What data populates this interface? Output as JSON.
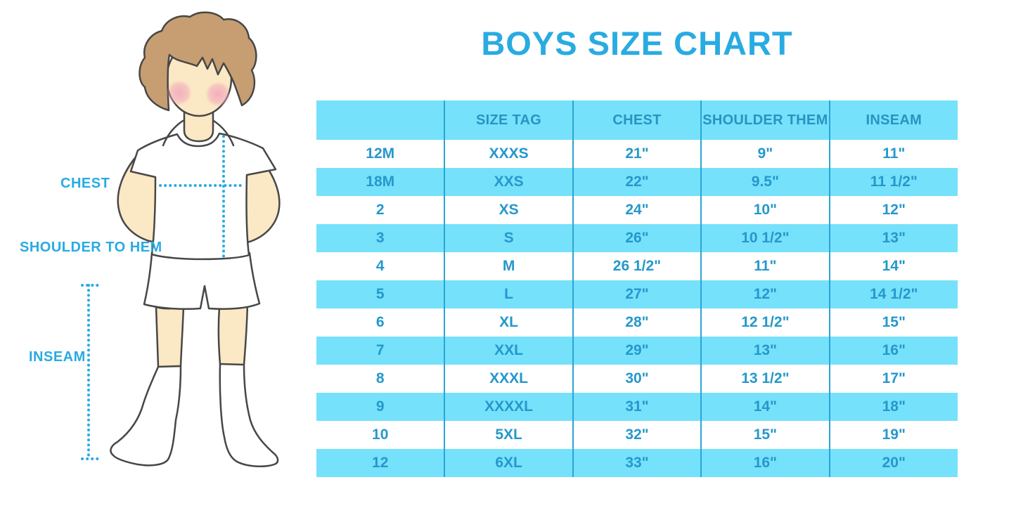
{
  "title": "BOYS SIZE CHART",
  "figure": {
    "labels": {
      "chest": "CHEST",
      "shoulder_to_hem": "SHOULDER TO HEM",
      "inseam": "INSEAM"
    }
  },
  "colors": {
    "accent_blue": "#29ABE2",
    "table_text_blue": "#2598CB",
    "row_alt_background": "#76E1FB",
    "column_border_blue": "#2BA4D6",
    "hair_brown": "#C79E71",
    "skin": "#FBE8C4",
    "cheek_pink": "#F2A9BC"
  },
  "chart_data": {
    "type": "table",
    "title": "BOYS SIZE CHART",
    "columns": [
      "",
      "SIZE TAG",
      "CHEST",
      "SHOULDER THEM",
      "INSEAM"
    ],
    "rows": [
      [
        "12M",
        "XXXS",
        "21\"",
        "9\"",
        "11\""
      ],
      [
        "18M",
        "XXS",
        "22\"",
        "9.5\"",
        "11 1/2\""
      ],
      [
        "2",
        "XS",
        "24\"",
        "10\"",
        "12\""
      ],
      [
        "3",
        "S",
        "26\"",
        "10 1/2\"",
        "13\""
      ],
      [
        "4",
        "M",
        "26 1/2\"",
        "11\"",
        "14\""
      ],
      [
        "5",
        "L",
        "27\"",
        "12\"",
        "14 1/2\""
      ],
      [
        "6",
        "XL",
        "28\"",
        "12 1/2\"",
        "15\""
      ],
      [
        "7",
        "XXL",
        "29\"",
        "13\"",
        "16\""
      ],
      [
        "8",
        "XXXL",
        "30\"",
        "13 1/2\"",
        "17\""
      ],
      [
        "9",
        "XXXXL",
        "31\"",
        "14\"",
        "18\""
      ],
      [
        "10",
        "5XL",
        "32\"",
        "15\"",
        "19\""
      ],
      [
        "12",
        "6XL",
        "33\"",
        "16\"",
        "20\""
      ]
    ],
    "layout": {
      "row_striping": "white/light-blue alternating, header light-blue",
      "grid": "vertical column separators only"
    }
  }
}
